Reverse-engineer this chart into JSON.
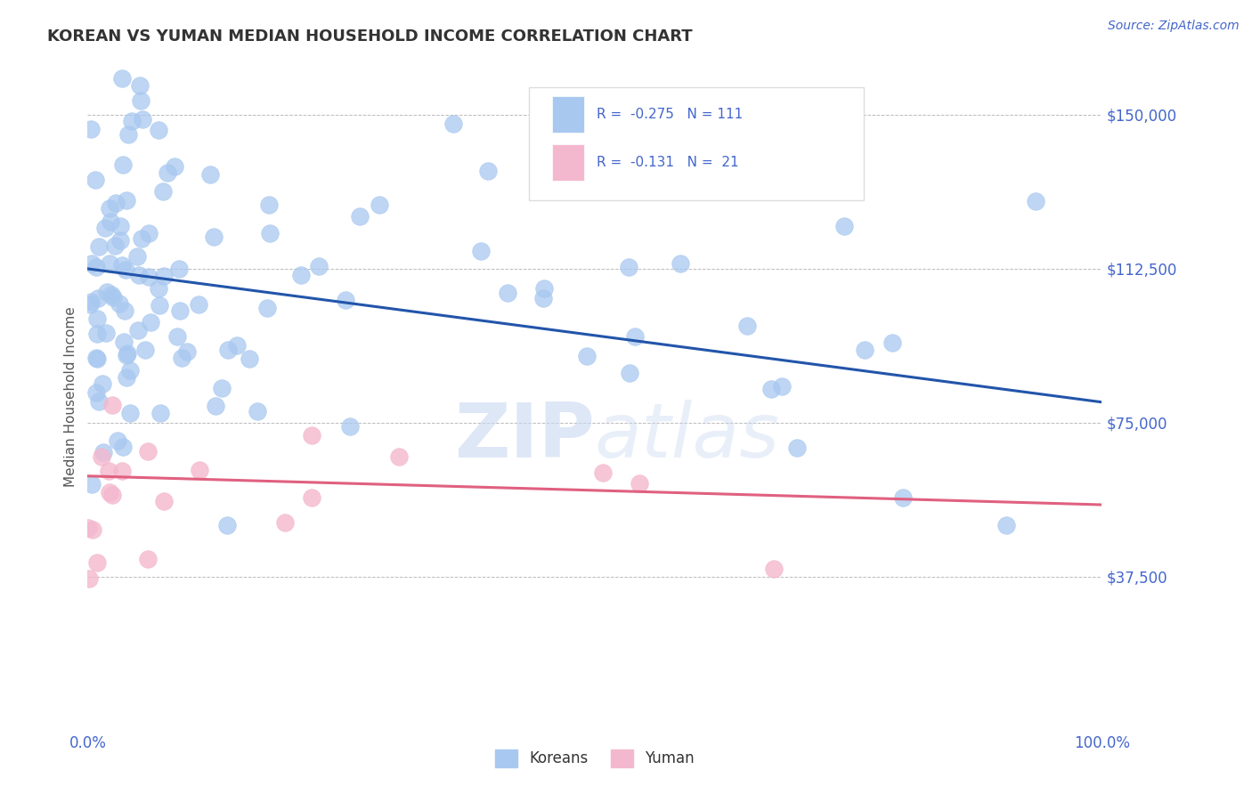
{
  "title": "KOREAN VS YUMAN MEDIAN HOUSEHOLD INCOME CORRELATION CHART",
  "source_text": "Source: ZipAtlas.com",
  "ylabel": "Median Household Income",
  "xlim": [
    0,
    1.0
  ],
  "ylim": [
    0,
    162500
  ],
  "xticks": [
    0.0,
    0.1,
    0.2,
    0.3,
    0.4,
    0.5,
    0.6,
    0.7,
    0.8,
    0.9,
    1.0
  ],
  "xticklabels": [
    "0.0%",
    "",
    "",
    "",
    "",
    "",
    "",
    "",
    "",
    "",
    "100.0%"
  ],
  "yticks": [
    0,
    37500,
    75000,
    112500,
    150000
  ],
  "yticklabels": [
    "",
    "$37,500",
    "$75,000",
    "$112,500",
    "$150,000"
  ],
  "korean_R": -0.275,
  "korean_N": 111,
  "yuman_R": -0.131,
  "yuman_N": 21,
  "korean_color": "#A8C8F0",
  "yuman_color": "#F4B8CE",
  "korean_line_color": "#2255AA",
  "yuman_line_color": "#E06080",
  "watermark_color": "#C8D8F0",
  "background_color": "#FFFFFF",
  "grid_color": "#BBBBBB",
  "tick_color": "#4466CC",
  "title_color": "#333333",
  "ylabel_color": "#555555",
  "figsize": [
    14.06,
    8.92
  ],
  "dpi": 100,
  "korean_line_x0": 0.0,
  "korean_line_y0": 112500,
  "korean_line_x1": 1.0,
  "korean_line_y1": 80000,
  "yuman_line_x0": 0.0,
  "yuman_line_y0": 62000,
  "yuman_line_x1": 1.0,
  "yuman_line_y1": 55000
}
